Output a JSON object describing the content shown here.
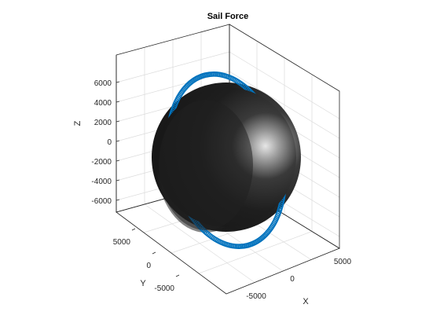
{
  "chart_data": {
    "type": "3d-orbit",
    "title": "Sail Force",
    "xlabel": "X",
    "ylabel": "Y",
    "zlabel": "Z",
    "x_ticks": [
      -5000,
      0,
      5000
    ],
    "x_tick_labels": [
      "-5000",
      "0",
      "5000"
    ],
    "y_ticks": [
      5000,
      0,
      -5000
    ],
    "y_tick_labels": [
      "5000",
      "0",
      "-5000"
    ],
    "z_ticks": [
      6000,
      4000,
      2000,
      0,
      -2000,
      -4000,
      -6000
    ],
    "z_tick_labels": [
      "6000",
      "4000",
      "2000",
      "0",
      "-2000",
      "-4000",
      "-6000"
    ],
    "zlim": [
      -7500,
      7500
    ],
    "grid": true,
    "series": [
      {
        "kind": "sphere",
        "radius": 6378,
        "color": "#262626"
      },
      {
        "kind": "orbit-with-force-vectors",
        "radius": 7100,
        "color": "#0072BD"
      }
    ]
  }
}
